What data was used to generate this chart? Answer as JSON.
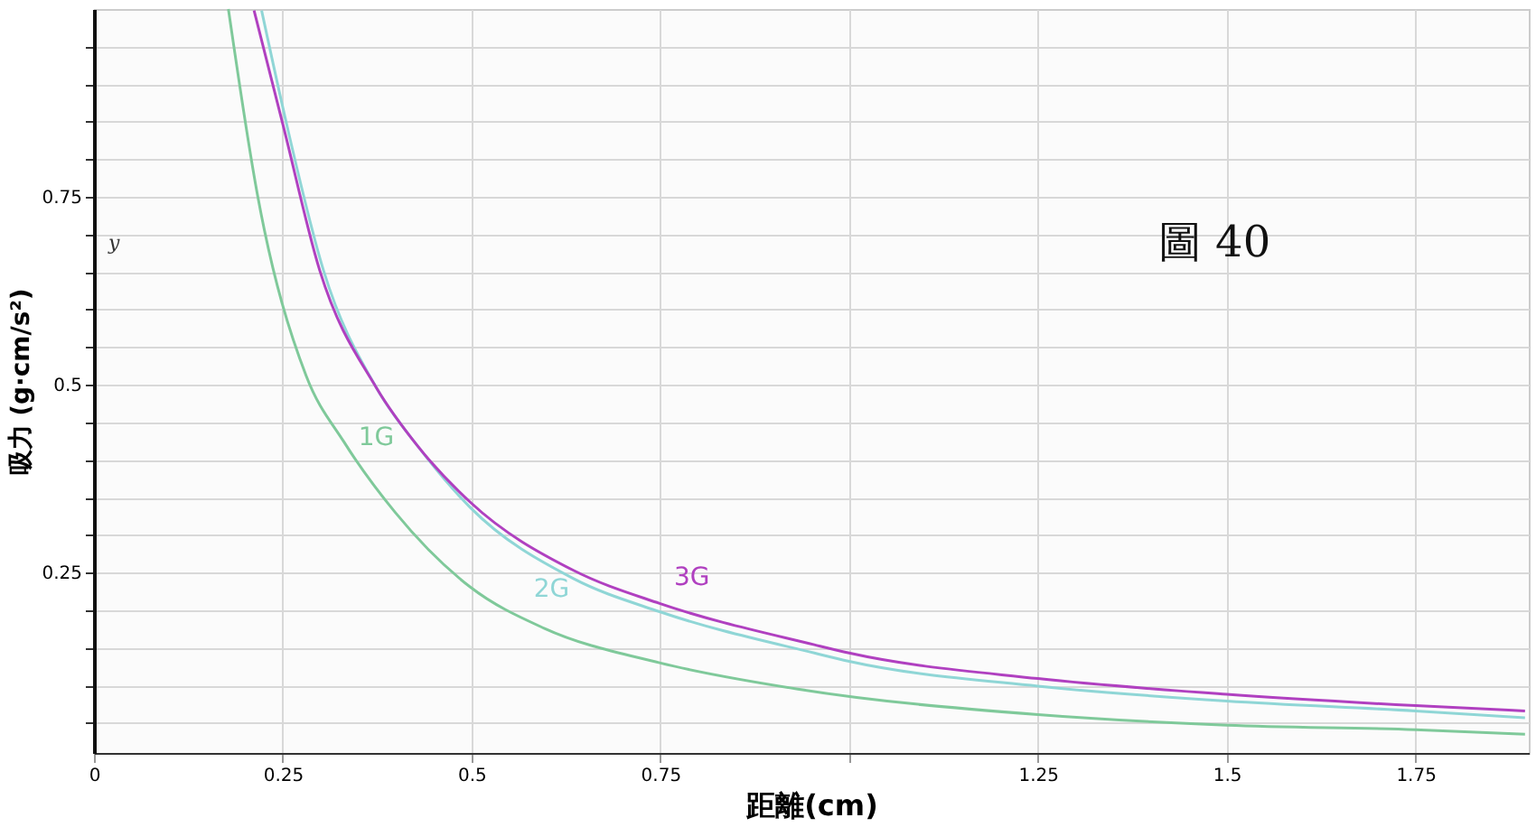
{
  "chart_data": {
    "type": "line",
    "title": "圖 40",
    "xlabel": "距離(cm)",
    "ylabel": "吸力 (g·cm/s²)",
    "annotations": [
      "y"
    ],
    "xlim": [
      0,
      1.9
    ],
    "ylim": [
      0.01,
      1.0
    ],
    "xticks": [
      0,
      0.25,
      0.5,
      0.75,
      {
        "value": 1,
        "label": null
      },
      1.25,
      1.5,
      1.75
    ],
    "yticks": [
      {
        "value": 0.05,
        "label": null
      },
      {
        "value": 0.1,
        "label": null
      },
      {
        "value": 0.15,
        "label": null
      },
      {
        "value": 0.2,
        "label": null
      },
      0.25,
      {
        "value": 0.3,
        "label": null
      },
      {
        "value": 0.35,
        "label": null
      },
      {
        "value": 0.4,
        "label": null
      },
      {
        "value": 0.45,
        "label": null
      },
      0.5,
      {
        "value": 0.55,
        "label": null
      },
      {
        "value": 0.6,
        "label": null
      },
      {
        "value": 0.65,
        "label": null
      },
      {
        "value": 0.7,
        "label": null
      },
      0.75,
      {
        "value": 0.8,
        "label": null
      },
      {
        "value": 0.85,
        "label": null
      },
      {
        "value": 0.9,
        "label": null
      },
      {
        "value": 0.95,
        "label": null
      }
    ],
    "grid": true,
    "marker": "none",
    "line_style": "solid",
    "series": [
      {
        "name": "1G",
        "color": "#7fc99a",
        "x": [
          0.178,
          0.217,
          0.281,
          0.331,
          0.399,
          0.498,
          0.596,
          0.749,
          0.932,
          1.25,
          1.5,
          1.75,
          1.895
        ],
        "values": [
          1.0,
          0.75,
          0.512,
          0.424,
          0.33,
          0.231,
          0.176,
          0.13,
          0.095,
          0.061,
          0.047,
          0.041,
          0.035
        ]
      },
      {
        "name": "2G",
        "color": "#8fd6d6",
        "x": [
          0.222,
          0.256,
          0.304,
          0.374,
          0.429,
          0.498,
          0.635,
          0.749,
          0.954,
          1.0,
          1.25,
          1.5,
          1.75,
          1.895
        ],
        "values": [
          0.998,
          0.843,
          0.652,
          0.496,
          0.418,
          0.337,
          0.242,
          0.198,
          0.143,
          0.132,
          0.099,
          0.079,
          0.066,
          0.057
        ]
      },
      {
        "name": "3G",
        "color": "#b040c0",
        "x": [
          0.212,
          0.251,
          0.299,
          0.374,
          0.429,
          0.498,
          0.635,
          0.749,
          0.954,
          1.0,
          1.25,
          1.5,
          1.75,
          1.895
        ],
        "values": [
          0.998,
          0.843,
          0.652,
          0.496,
          0.418,
          0.344,
          0.253,
          0.209,
          0.154,
          0.143,
          0.109,
          0.088,
          0.073,
          0.066
        ]
      }
    ]
  }
}
